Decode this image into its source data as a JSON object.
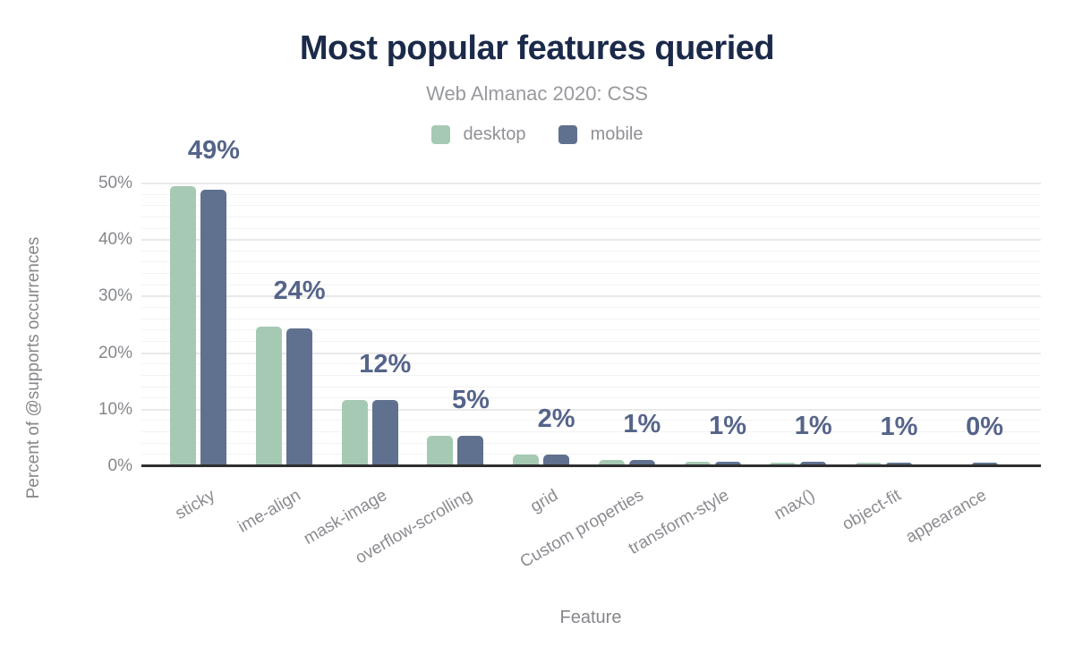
{
  "title": "Most popular features queried",
  "subtitle": "Web Almanac 2020: CSS",
  "legend": [
    {
      "label": "desktop",
      "color": "#a6c9b3"
    },
    {
      "label": "mobile",
      "color": "#5f718e"
    }
  ],
  "y_axis": {
    "title": "Percent of @supports occurrences",
    "tick_labels": [
      "0%",
      "10%",
      "20%",
      "30%",
      "40%",
      "50%"
    ]
  },
  "x_axis": {
    "title": "Feature"
  },
  "colors": {
    "title_text": "#1b2a4a",
    "muted_text": "#8f9195",
    "annotation_text": "#556489",
    "axis_line": "#2f2f2f",
    "major_gridline": "#e9e9e9",
    "minor_gridline": "#f3f3f3",
    "desktop_bar": "#a6c9b3",
    "mobile_bar": "#5f718e"
  },
  "chart_data": {
    "type": "bar",
    "categories": [
      "sticky",
      "ime-align",
      "mask-image",
      "overflow-scrolling",
      "grid",
      "Custom properties",
      "transform-style",
      "max()",
      "object-fit",
      "appearance"
    ],
    "series": [
      {
        "name": "desktop",
        "color": "#a6c9b3",
        "values": [
          49.3,
          24.5,
          11.6,
          5.3,
          1.9,
          1.0,
          0.7,
          0.4,
          0.4,
          0.1
        ]
      },
      {
        "name": "mobile",
        "color": "#5f718e",
        "values": [
          48.8,
          24.2,
          11.6,
          5.3,
          1.9,
          1.0,
          0.7,
          0.6,
          0.4,
          0.4
        ]
      }
    ],
    "annotations": [
      "49%",
      "24%",
      "12%",
      "5%",
      "2%",
      "1%",
      "1%",
      "1%",
      "1%",
      "0%"
    ],
    "title": "Most popular features queried",
    "subtitle": "Web Almanac 2020: CSS",
    "xlabel": "Feature",
    "ylabel": "Percent of @supports occurrences",
    "ylim": [
      0,
      50
    ],
    "ytick_step": 10,
    "minor_gridline_step": 2,
    "grid": true,
    "legend_position": "top-center"
  }
}
